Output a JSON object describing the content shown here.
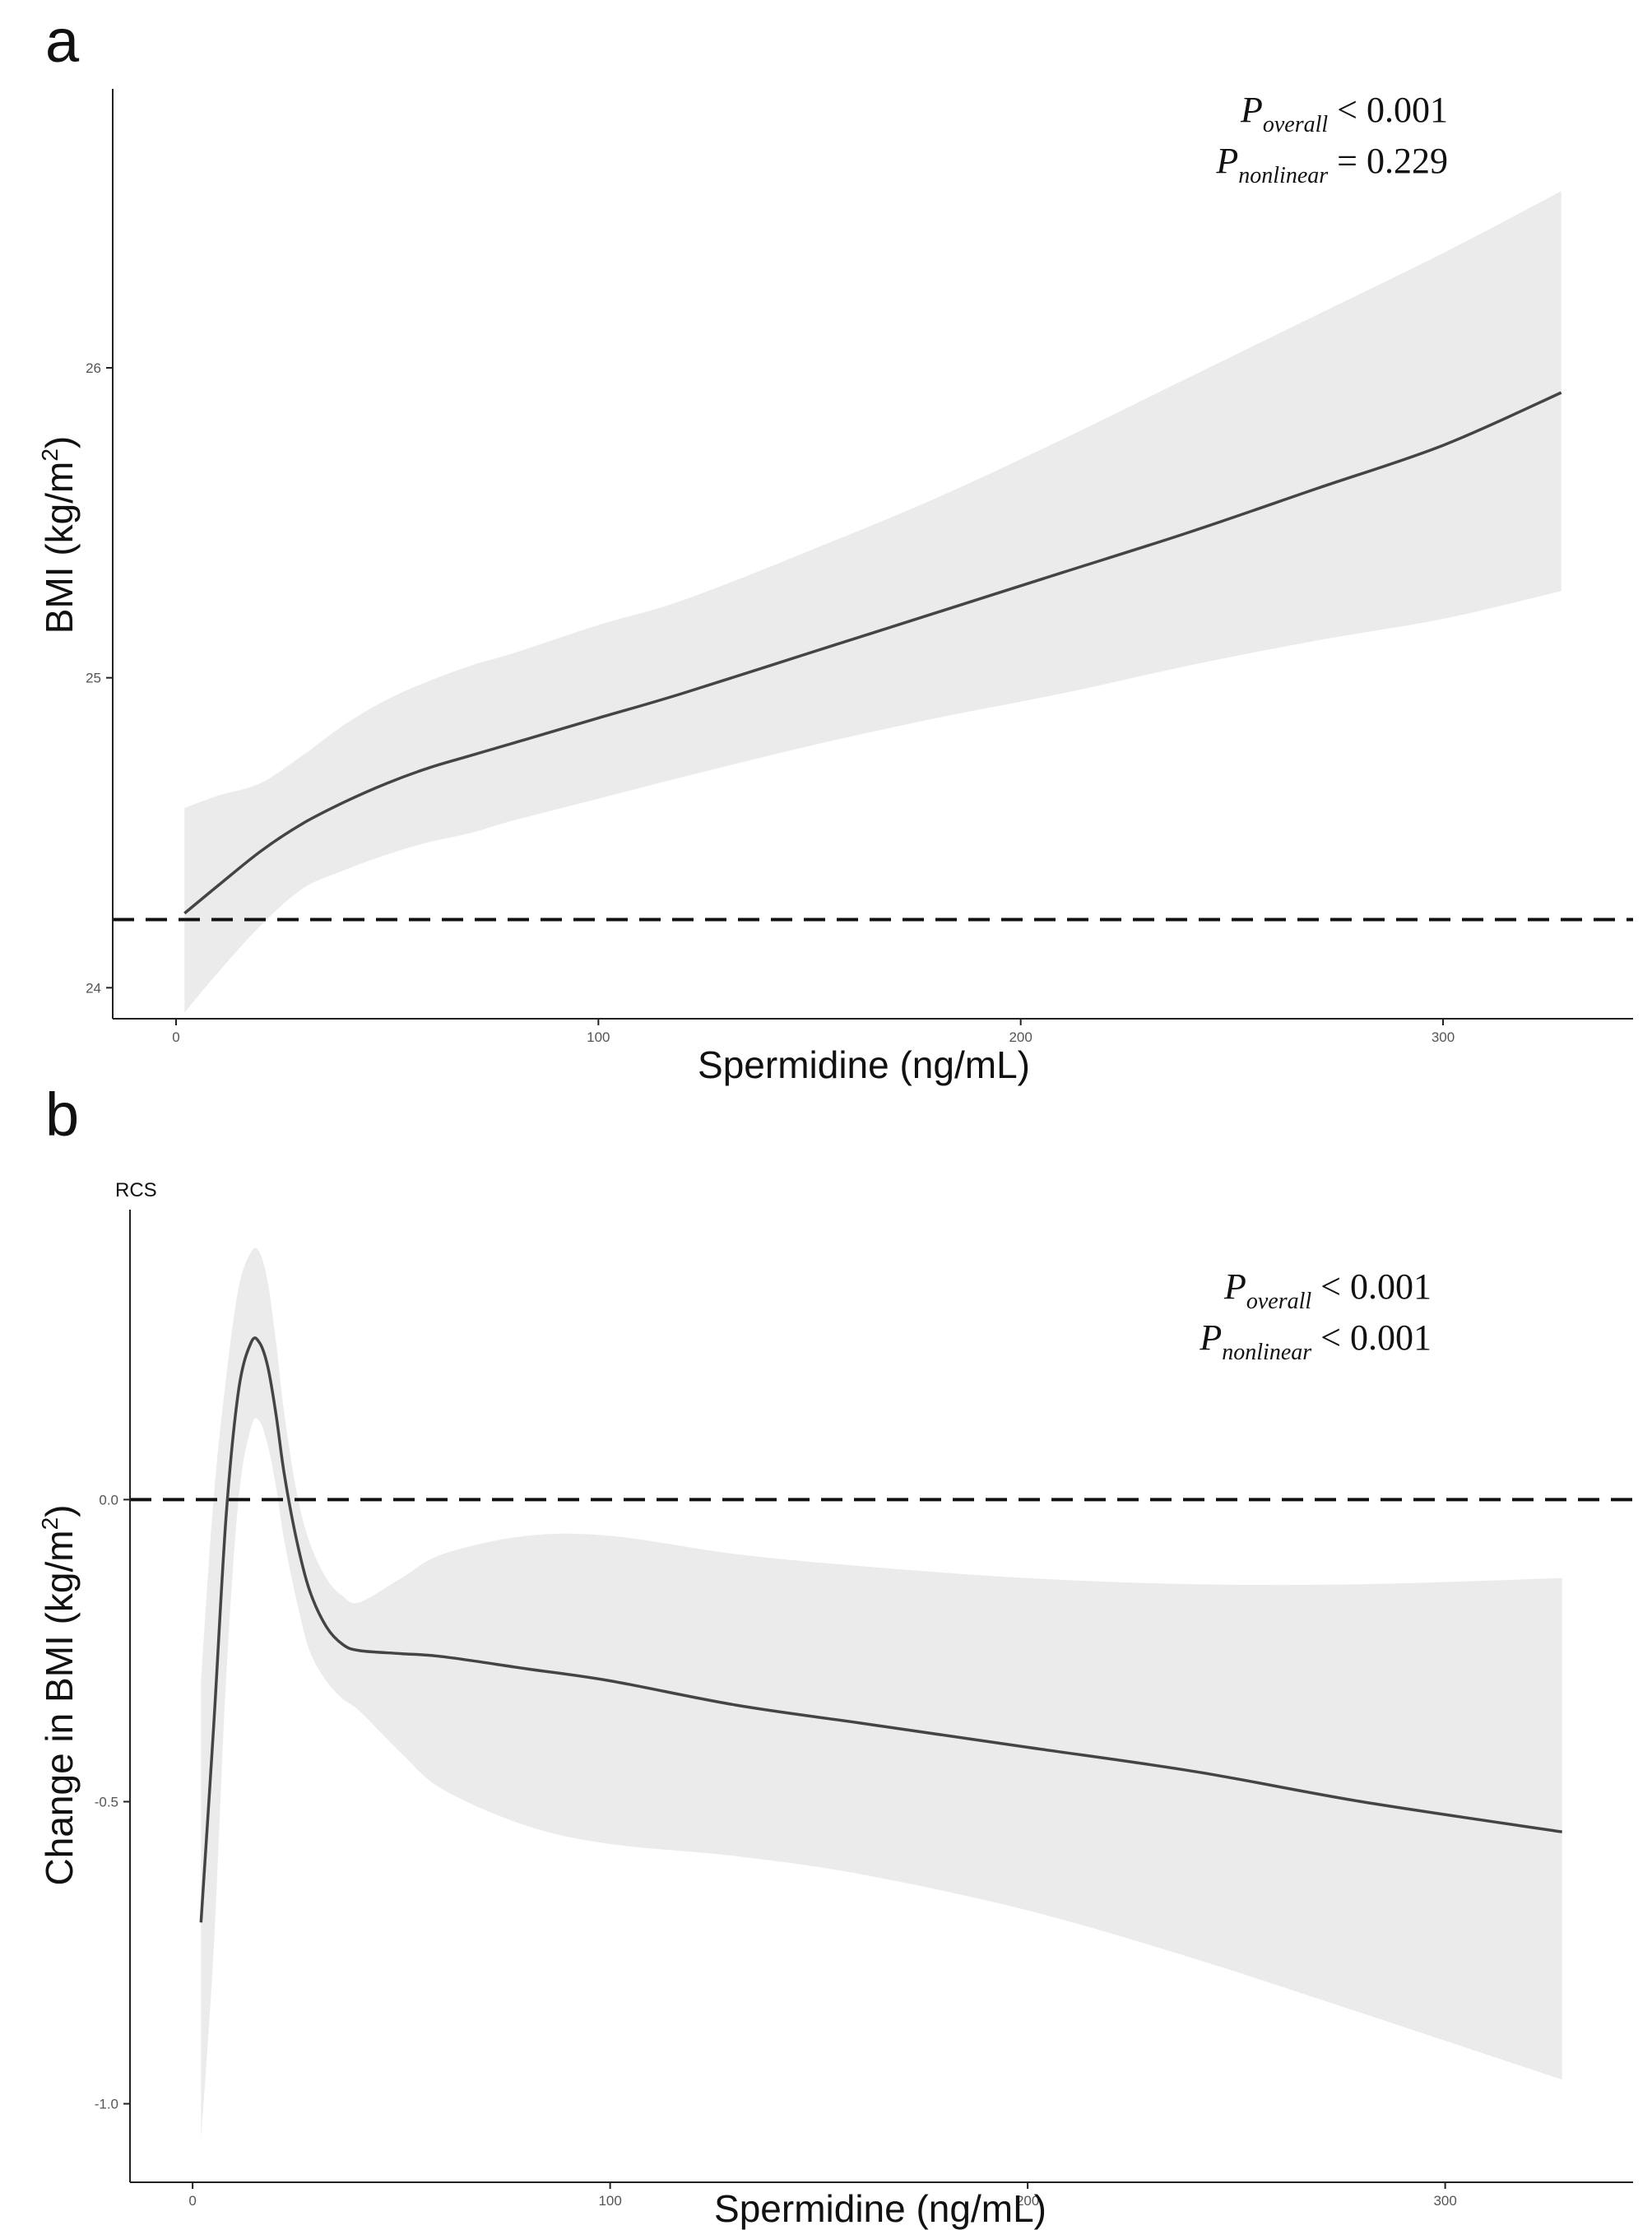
{
  "chart_data": [
    {
      "type": "line",
      "panel_label": "a",
      "subtitle": "",
      "xlabel": "Spermidine (ng/mL)",
      "ylabel_text": "BMI (kg/m",
      "ylabel_sup": "2",
      "ylabel_close": ")",
      "xlim": [
        -15,
        345
      ],
      "ylim": [
        23.9,
        26.9
      ],
      "xticks": [
        0,
        100,
        200,
        300
      ],
      "xtick_labels": [
        "0",
        "100",
        "200",
        "300"
      ],
      "yticks": [
        24,
        25,
        26
      ],
      "ytick_labels": [
        "24",
        "25",
        "26"
      ],
      "reference_line": 24.22,
      "annotation": [
        {
          "p": "P",
          "sub": "overall",
          "rest": " < 0.001"
        },
        {
          "p": "P",
          "sub": "nonlinear",
          "rest": " = 0.229"
        }
      ],
      "series": [
        {
          "name": "estimate",
          "x": [
            2,
            10,
            20,
            30,
            40,
            50,
            60,
            70,
            80,
            100,
            120,
            150,
            180,
            210,
            240,
            270,
            300,
            328
          ],
          "y": [
            24.24,
            24.33,
            24.44,
            24.53,
            24.6,
            24.66,
            24.71,
            24.75,
            24.79,
            24.87,
            24.95,
            25.08,
            25.21,
            25.34,
            25.47,
            25.61,
            25.75,
            25.92
          ]
        },
        {
          "name": "ci_upper",
          "x": [
            2,
            10,
            20,
            30,
            40,
            50,
            60,
            70,
            80,
            100,
            120,
            150,
            180,
            210,
            240,
            270,
            300,
            328
          ],
          "y": [
            24.58,
            24.62,
            24.66,
            24.75,
            24.85,
            24.93,
            24.99,
            25.04,
            25.08,
            25.17,
            25.25,
            25.41,
            25.58,
            25.77,
            25.97,
            26.17,
            26.37,
            26.57
          ]
        },
        {
          "name": "ci_lower",
          "x": [
            2,
            10,
            20,
            30,
            40,
            50,
            60,
            70,
            80,
            100,
            120,
            150,
            180,
            210,
            240,
            270,
            300,
            328
          ],
          "y": [
            23.92,
            24.05,
            24.2,
            24.32,
            24.38,
            24.43,
            24.47,
            24.5,
            24.54,
            24.61,
            24.68,
            24.78,
            24.87,
            24.95,
            25.04,
            25.12,
            25.19,
            25.28
          ]
        }
      ]
    },
    {
      "type": "line",
      "panel_label": "b",
      "subtitle": "RCS",
      "xlabel": "Spermidine (ng/mL)",
      "ylabel_text": "Change in BMI (kg/m",
      "ylabel_sup": "2",
      "ylabel_close": ")",
      "xlim": [
        -15,
        345
      ],
      "ylim": [
        -1.13,
        0.48
      ],
      "xticks": [
        0,
        100,
        200,
        300
      ],
      "xtick_labels": [
        "0",
        "100",
        "200",
        "300"
      ],
      "yticks": [
        -1.0,
        -0.5,
        0.0
      ],
      "ytick_labels": [
        "-1.0",
        "-0.5",
        "0.0"
      ],
      "reference_line": 0.0,
      "annotation": [
        {
          "p": "P",
          "sub": "overall",
          "rest": " < 0.001"
        },
        {
          "p": "P",
          "sub": "nonlinear",
          "rest": " < 0.001"
        }
      ],
      "series": [
        {
          "name": "estimate",
          "x": [
            2,
            5,
            8,
            11,
            14,
            16,
            18,
            20,
            22,
            25,
            28,
            32,
            36,
            40,
            50,
            60,
            80,
            100,
            130,
            160,
            200,
            240,
            280,
            328
          ],
          "y": [
            -0.7,
            -0.38,
            -0.03,
            0.18,
            0.26,
            0.26,
            0.22,
            0.14,
            0.04,
            -0.07,
            -0.15,
            -0.21,
            -0.24,
            -0.25,
            -0.255,
            -0.26,
            -0.28,
            -0.3,
            -0.34,
            -0.37,
            -0.41,
            -0.45,
            -0.5,
            -0.55
          ]
        },
        {
          "name": "ci_upper",
          "x": [
            2,
            5,
            8,
            11,
            14,
            16,
            18,
            20,
            22,
            25,
            28,
            32,
            36,
            40,
            50,
            60,
            80,
            100,
            130,
            160,
            200,
            240,
            280,
            328
          ],
          "y": [
            -0.3,
            0.0,
            0.2,
            0.35,
            0.41,
            0.41,
            0.36,
            0.26,
            0.14,
            0.01,
            -0.07,
            -0.13,
            -0.16,
            -0.17,
            -0.13,
            -0.09,
            -0.06,
            -0.06,
            -0.09,
            -0.11,
            -0.13,
            -0.14,
            -0.14,
            -0.13
          ]
        },
        {
          "name": "ci_lower",
          "x": [
            2,
            5,
            8,
            11,
            14,
            16,
            18,
            20,
            22,
            25,
            28,
            32,
            36,
            40,
            50,
            60,
            80,
            100,
            130,
            160,
            200,
            240,
            280,
            328
          ],
          "y": [
            -1.06,
            -0.75,
            -0.3,
            0.0,
            0.12,
            0.13,
            0.09,
            0.02,
            -0.07,
            -0.17,
            -0.25,
            -0.3,
            -0.33,
            -0.35,
            -0.42,
            -0.48,
            -0.54,
            -0.57,
            -0.59,
            -0.62,
            -0.68,
            -0.76,
            -0.85,
            -0.96
          ]
        }
      ]
    }
  ]
}
